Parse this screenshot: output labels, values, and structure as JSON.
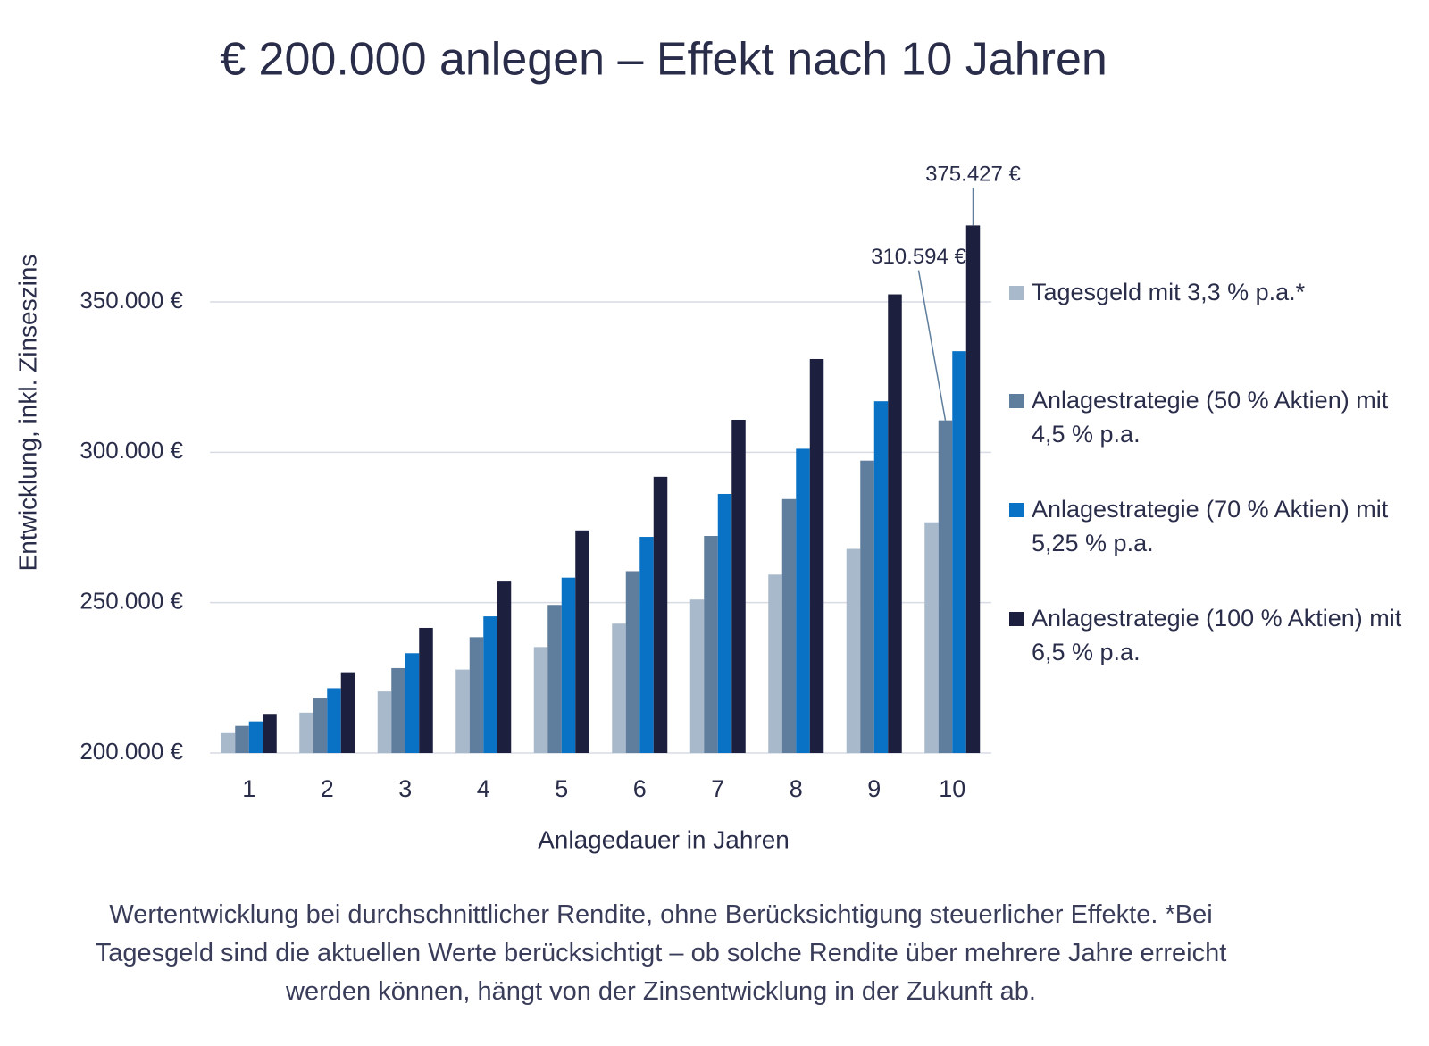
{
  "chart_data": {
    "type": "bar",
    "title": "€ 200.000 anlegen – Effekt nach 10 Jahren",
    "x_label": "Anlagedauer in Jahren",
    "y_label": "Entwicklung, inkl. Zinseszins",
    "footnote": "Wertentwicklung bei durchschnittlicher Rendite, ohne Berücksichtigung steuerlicher Effekte. *Bei Tagesgeld sind die aktuellen Werte berücksichtigt – ob solche Rendite über mehrere Jahre erreicht werden können, hängt von der Zinsentwicklung in der Zukunft ab.",
    "categories": [
      "1",
      "2",
      "3",
      "4",
      "5",
      "6",
      "7",
      "8",
      "9",
      "10"
    ],
    "series": [
      {
        "name": "Tagesgeld mit 3,3 % p.a.*",
        "color": "#a9b9cc",
        "values": [
          206600,
          213418,
          220461,
          227736,
          235251,
          243014,
          251034,
          259318,
          267875,
          276715
        ]
      },
      {
        "name": "Anlagestrategie (50 % Aktien) mit 4,5 % p.a.",
        "color": "#5f7d9c",
        "values": [
          209000,
          218405,
          228233,
          238504,
          249236,
          260452,
          272172,
          284420,
          297219,
          310594
        ],
        "value_labels": [
          null,
          null,
          null,
          null,
          null,
          null,
          null,
          null,
          null,
          "310.594 €"
        ]
      },
      {
        "name": "Anlagestrategie (70 % Aktien) mit 5,25 % p.a.",
        "color": "#0a72c4",
        "values": [
          210500,
          221551,
          233183,
          245425,
          258310,
          271871,
          286144,
          301167,
          316978,
          333619
        ]
      },
      {
        "name": "Anlagestrategie (100 % Aktien) mit 6,5 % p.a.",
        "color": "#1c1f3e",
        "values": [
          213000,
          226845,
          241590,
          257293,
          274017,
          291828,
          310797,
          330998,
          352513,
          375427
        ],
        "value_labels": [
          null,
          null,
          null,
          null,
          null,
          null,
          null,
          null,
          null,
          "375.427 €"
        ]
      }
    ],
    "ylim": [
      200000,
      380000
    ],
    "yticks": [
      {
        "value": 200000,
        "label": "200.000 €"
      },
      {
        "value": 250000,
        "label": "250.000 €"
      },
      {
        "value": 300000,
        "label": "300.000 €"
      },
      {
        "value": 350000,
        "label": "350.000 €"
      }
    ],
    "grid": true
  }
}
